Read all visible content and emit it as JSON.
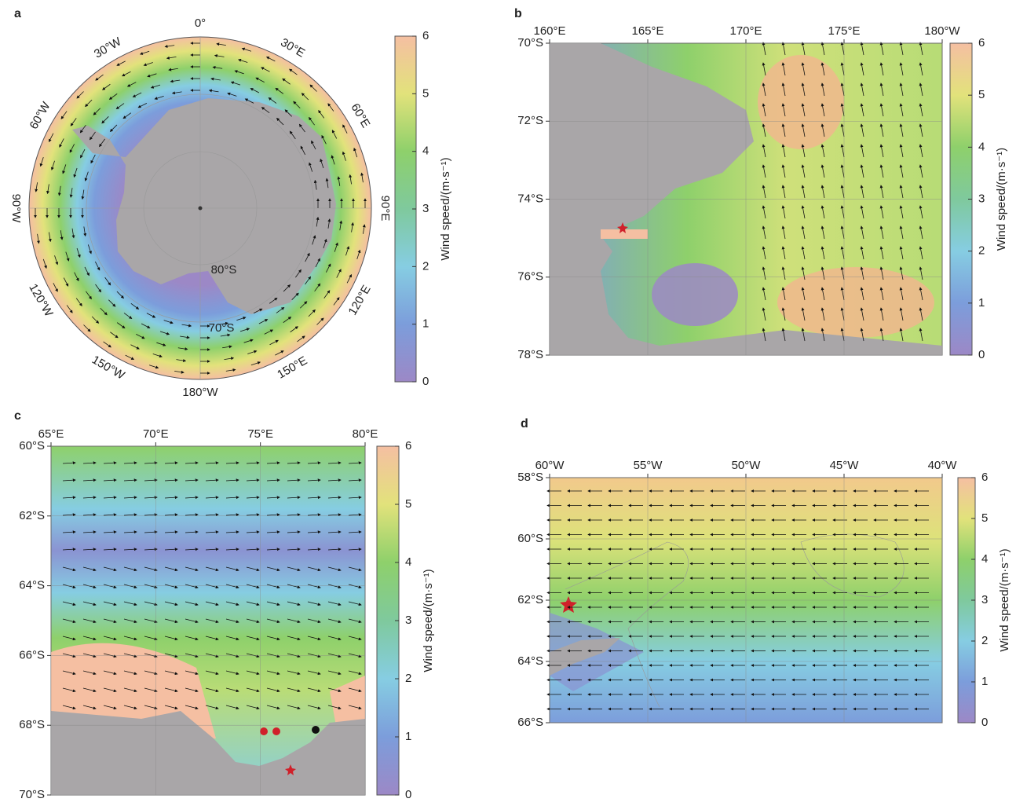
{
  "panels": [
    {
      "label": "a",
      "lon_labels": [
        "0°",
        "30°E",
        "60°E",
        "90°E",
        "120°E",
        "150°E",
        "180°W",
        "150°W",
        "120°W",
        "90°W",
        "60°W",
        "30°W"
      ],
      "lat_labels": [
        "80°S",
        "70°S"
      ],
      "colorbar": {
        "label": "Wind speed/(m·s⁻¹)",
        "lim": [
          0,
          6
        ],
        "ticks": [
          0,
          1,
          2,
          3,
          4,
          5,
          6
        ]
      }
    },
    {
      "label": "b",
      "lon_labels": [
        "160°E",
        "165°E",
        "170°E",
        "175°E",
        "180°W"
      ],
      "lat_labels": [
        "70°S",
        "72°S",
        "74°S",
        "76°S",
        "78°S"
      ],
      "colorbar": {
        "label": "Wind speed/(m·s⁻¹)",
        "lim": [
          0,
          6
        ],
        "ticks": [
          0,
          1,
          2,
          3,
          4,
          5,
          6
        ]
      }
    },
    {
      "label": "c",
      "lon_labels": [
        "65°E",
        "70°E",
        "75°E",
        "80°E"
      ],
      "lat_labels": [
        "60°S",
        "62°S",
        "64°S",
        "66°S",
        "68°S",
        "70°S"
      ],
      "colorbar": {
        "label": "Wind speed/(m·s⁻¹)",
        "lim": [
          0,
          6
        ],
        "ticks": [
          0,
          1,
          2,
          3,
          4,
          5,
          6
        ]
      }
    },
    {
      "label": "d",
      "lon_labels": [
        "60°W",
        "55°W",
        "50°W",
        "45°W",
        "40°W"
      ],
      "lat_labels": [
        "58°S",
        "60°S",
        "62°S",
        "64°S",
        "66°S"
      ],
      "colorbar": {
        "label": "Wind speed/(m·s⁻¹)",
        "lim": [
          0,
          6
        ],
        "ticks": [
          0,
          1,
          2,
          3,
          4,
          5,
          6
        ]
      }
    }
  ],
  "colormap": [
    "#9c88c6",
    "#7c9ddb",
    "#86cde2",
    "#7fc99d",
    "#8ed06b",
    "#e2e27b",
    "#f5bfa2"
  ]
}
